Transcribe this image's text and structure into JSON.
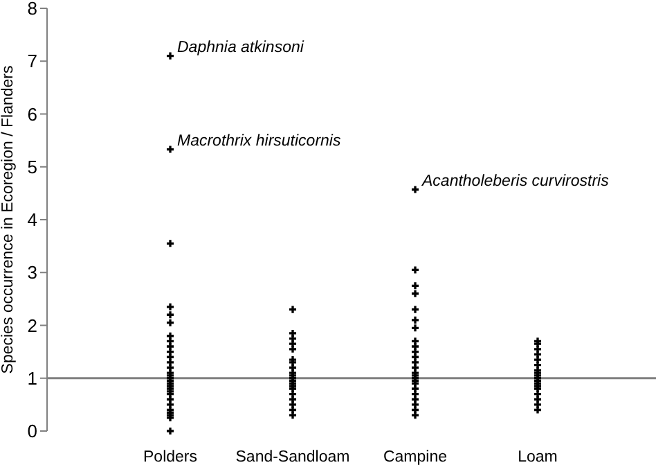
{
  "chart_data": {
    "type": "scatter",
    "ylabel": "Species occurrence in Ecoregion / Flanders",
    "categories": [
      "Polders",
      "Sand-Sandloam",
      "Campine",
      "Loam"
    ],
    "series": [
      {
        "color": "#000000",
        "x": [
          "Polders",
          "Polders",
          "Polders",
          "Polders",
          "Polders",
          "Polders",
          "Polders",
          "Polders",
          "Polders",
          "Polders",
          "Polders",
          "Polders",
          "Polders",
          "Polders",
          "Polders",
          "Polders",
          "Polders",
          "Polders",
          "Polders",
          "Polders",
          "Polders",
          "Polders",
          "Polders",
          "Polders",
          "Polders",
          "Polders",
          "Polders",
          "Polders",
          "Polders"
        ],
        "values": [
          7.1,
          5.33,
          3.55,
          2.35,
          2.2,
          2.05,
          1.8,
          1.7,
          1.6,
          1.5,
          1.4,
          1.3,
          1.2,
          1.1,
          1.05,
          1.0,
          0.95,
          0.9,
          0.85,
          0.8,
          0.75,
          0.7,
          0.6,
          0.5,
          0.4,
          0.35,
          0.3,
          0.25,
          0.0
        ]
      },
      {
        "color": "#000000",
        "x": [
          "Sand-Sandloam",
          "Sand-Sandloam",
          "Sand-Sandloam",
          "Sand-Sandloam",
          "Sand-Sandloam",
          "Sand-Sandloam",
          "Sand-Sandloam",
          "Sand-Sandloam",
          "Sand-Sandloam",
          "Sand-Sandloam",
          "Sand-Sandloam",
          "Sand-Sandloam",
          "Sand-Sandloam",
          "Sand-Sandloam",
          "Sand-Sandloam",
          "Sand-Sandloam",
          "Sand-Sandloam",
          "Sand-Sandloam",
          "Sand-Sandloam",
          "Sand-Sandloam"
        ],
        "values": [
          2.3,
          1.85,
          1.75,
          1.65,
          1.55,
          1.35,
          1.3,
          1.2,
          1.1,
          1.05,
          1.0,
          0.95,
          0.9,
          0.85,
          0.8,
          0.7,
          0.6,
          0.5,
          0.4,
          0.3
        ]
      },
      {
        "color": "#000000",
        "x": [
          "Campine",
          "Campine",
          "Campine",
          "Campine",
          "Campine",
          "Campine",
          "Campine",
          "Campine",
          "Campine",
          "Campine",
          "Campine",
          "Campine",
          "Campine",
          "Campine",
          "Campine",
          "Campine",
          "Campine",
          "Campine",
          "Campine",
          "Campine",
          "Campine",
          "Campine",
          "Campine",
          "Campine"
        ],
        "values": [
          4.57,
          3.05,
          2.75,
          2.6,
          2.3,
          2.1,
          1.95,
          1.7,
          1.6,
          1.5,
          1.4,
          1.3,
          1.2,
          1.1,
          1.05,
          1.0,
          0.95,
          0.9,
          0.8,
          0.7,
          0.6,
          0.5,
          0.4,
          0.3
        ]
      },
      {
        "color": "#000000",
        "x": [
          "Loam",
          "Loam",
          "Loam",
          "Loam",
          "Loam",
          "Loam",
          "Loam",
          "Loam",
          "Loam",
          "Loam",
          "Loam",
          "Loam",
          "Loam",
          "Loam",
          "Loam",
          "Loam",
          "Loam",
          "Loam"
        ],
        "values": [
          1.7,
          1.65,
          1.55,
          1.45,
          1.35,
          1.25,
          1.15,
          1.1,
          1.05,
          1.0,
          0.95,
          0.9,
          0.85,
          0.8,
          0.7,
          0.6,
          0.5,
          0.4
        ]
      }
    ],
    "ylim": [
      0,
      8
    ],
    "yticks": [
      0,
      1,
      2,
      3,
      4,
      5,
      6,
      7,
      8
    ],
    "grid": false,
    "marker": "cross",
    "ref_lines": [
      {
        "axis": "y",
        "value": 1,
        "color": "#808080"
      }
    ],
    "annotations": [
      {
        "text": "Daphnia atkinsoni",
        "x": "Polders",
        "y": 7.1
      },
      {
        "text": "Macrothrix hirsuticornis",
        "x": "Polders",
        "y": 5.33
      },
      {
        "text": "Acantholeberis curvirostris",
        "x": "Campine",
        "y": 4.57
      }
    ]
  }
}
